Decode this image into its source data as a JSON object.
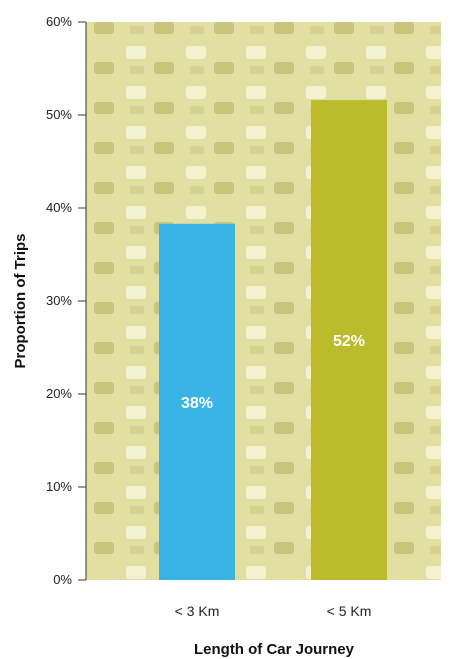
{
  "chart_data": {
    "type": "bar",
    "categories": [
      "< 3 Km",
      "< 5 Km"
    ],
    "values": [
      38.3,
      51.6
    ],
    "data_labels": [
      "38%",
      "52%"
    ],
    "bar_colors": [
      "#3ab4e5",
      "#bcbb2b"
    ],
    "background_color": "#e2dfa2",
    "xlabel": "Length of Car Journey",
    "ylabel": "Proportion of Trips",
    "ylim": [
      0,
      60
    ],
    "yticks": [
      0,
      10,
      20,
      30,
      40,
      50,
      60
    ],
    "ytick_labels": [
      "0%",
      "10%",
      "20%",
      "30%",
      "40%",
      "50%",
      "60%"
    ],
    "grid": false,
    "legend": "none"
  }
}
